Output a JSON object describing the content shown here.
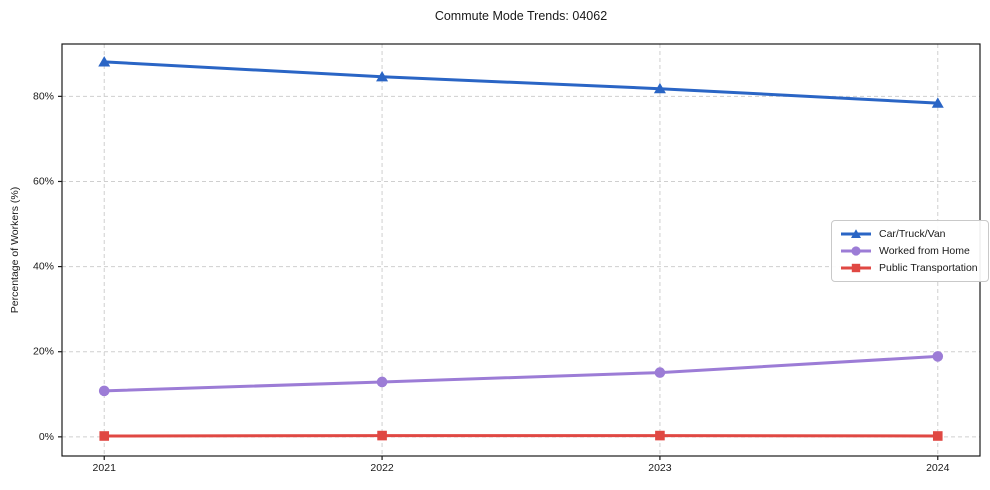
{
  "chart_data": {
    "type": "line",
    "title": "Commute Mode Trends: 04062",
    "xlabel": "",
    "ylabel": "Percentage of Workers (%)",
    "categories": [
      "2021",
      "2022",
      "2023",
      "2024"
    ],
    "series": [
      {
        "name": "Car/Truck/Van",
        "marker": "triangle",
        "color": "#2a65c5",
        "values": [
          88.1,
          84.6,
          81.8,
          78.4
        ]
      },
      {
        "name": "Worked from Home",
        "marker": "circle",
        "color": "#9c7cd6",
        "values": [
          10.8,
          12.9,
          15.1,
          18.9
        ]
      },
      {
        "name": "Public Transportation",
        "marker": "square",
        "color": "#e04843",
        "values": [
          0.2,
          0.3,
          0.3,
          0.2
        ]
      }
    ],
    "yticks": {
      "values": [
        0,
        20,
        40,
        60,
        80
      ],
      "labels": [
        "0%",
        "20%",
        "40%",
        "60%",
        "80%"
      ]
    },
    "ylim": [
      -4.5,
      92.3
    ],
    "grid": true,
    "legend_position": "center right",
    "colors": {
      "spine": "#1a1a1a",
      "grid": "#cfcfcf",
      "tick_label": "#1a1a1a"
    }
  }
}
